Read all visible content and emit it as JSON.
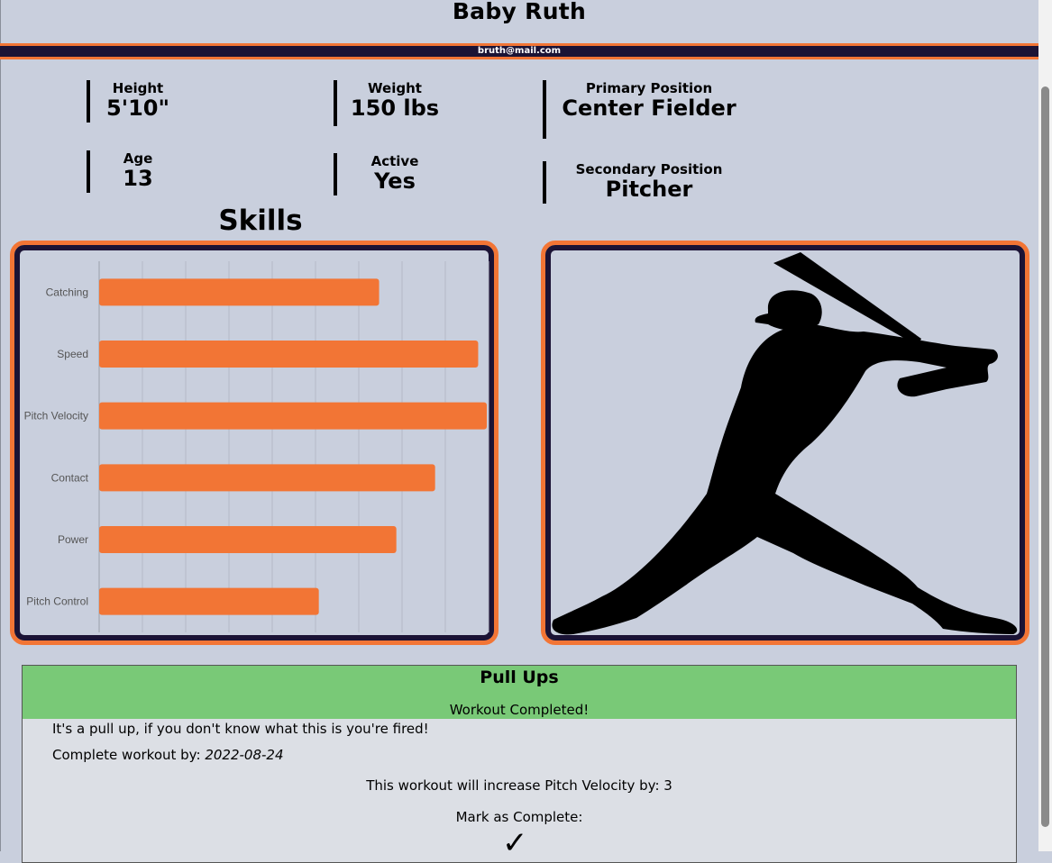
{
  "player": {
    "name": "Baby Ruth",
    "email": "bruth@mail.com"
  },
  "stats": {
    "height": {
      "label": "Height",
      "value": "5'10\""
    },
    "weight": {
      "label": "Weight",
      "value": "150 lbs"
    },
    "primary_position": {
      "label": "Primary Position",
      "value": "Center Fielder"
    },
    "age": {
      "label": "Age",
      "value": "13"
    },
    "active": {
      "label": "Active",
      "value": "Yes"
    },
    "secondary_position": {
      "label": "Secondary Position",
      "value": "Pitcher"
    }
  },
  "skills": {
    "title": "Skills"
  },
  "chart_data": {
    "type": "bar",
    "orientation": "horizontal",
    "categories": [
      "Catching",
      "Speed",
      "Pitch Velocity",
      "Contact",
      "Power",
      "Pitch Control"
    ],
    "values": [
      65,
      88,
      90,
      78,
      69,
      51
    ],
    "xlim": [
      0,
      90
    ],
    "grid": true,
    "bar_color": "#f27535"
  },
  "image": {
    "icon": "batter-silhouette-icon"
  },
  "workout": {
    "title": "Pull Ups",
    "status": "Workout Completed!",
    "description": "It's a pull up, if you don't know what this is you're fired!",
    "due_label": "Complete workout by:",
    "due_date": "2022-08-24",
    "increase_text": "This workout will increase Pitch Velocity by: 3",
    "mark_label": "Mark as Complete:",
    "check_icon": "checkmark-icon"
  },
  "colors": {
    "background": "#c9cfdd",
    "accent": "#f27535",
    "navy": "#1b1335",
    "complete": "#79c977"
  }
}
